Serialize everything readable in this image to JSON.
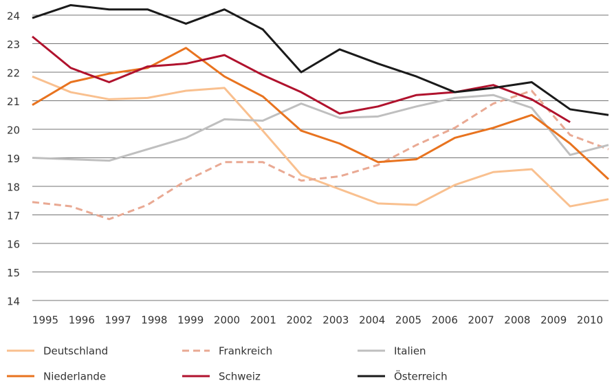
{
  "chart_data": {
    "type": "line",
    "categories": [
      "1995",
      "1996",
      "1997",
      "1998",
      "1999",
      "2000",
      "2001",
      "2002",
      "2003",
      "2004",
      "2005",
      "2006",
      "2007",
      "2008",
      "2009",
      "2010"
    ],
    "ylim": [
      14,
      24.4
    ],
    "yticks": [
      14,
      15,
      16,
      17,
      18,
      19,
      20,
      21,
      22,
      23,
      24
    ],
    "grid": true,
    "series": [
      {
        "name": "Deutschland",
        "color": "#f9c08f",
        "values": [
          21.85,
          21.3,
          21.05,
          21.1,
          21.35,
          21.45,
          19.95,
          18.4,
          17.9,
          17.4,
          17.35,
          18.05,
          18.5,
          18.6,
          17.3,
          17.55
        ]
      },
      {
        "name": "Frankreich",
        "color": "#e9a993",
        "dashed": true,
        "values": [
          17.45,
          17.3,
          16.85,
          17.35,
          18.2,
          18.85,
          18.85,
          18.2,
          18.35,
          18.75,
          19.45,
          20.05,
          20.9,
          21.35,
          19.8,
          19.3
        ]
      },
      {
        "name": "Italien",
        "color": "#bfbfbf",
        "values": [
          19.0,
          18.95,
          18.9,
          19.3,
          19.7,
          20.35,
          20.3,
          20.9,
          20.4,
          20.45,
          20.8,
          21.1,
          21.2,
          20.75,
          19.1,
          19.45
        ]
      },
      {
        "name": "Niederlande",
        "color": "#e8731f",
        "values": [
          20.85,
          21.65,
          21.95,
          22.15,
          22.85,
          21.85,
          21.15,
          19.95,
          19.5,
          18.85,
          18.95,
          19.7,
          20.05,
          20.5,
          19.5,
          18.25
        ]
      },
      {
        "name": "Schweiz",
        "color": "#b0122d",
        "values": [
          23.25,
          22.15,
          21.65,
          22.2,
          22.3,
          22.6,
          21.9,
          21.3,
          20.55,
          20.8,
          21.2,
          21.3,
          21.55,
          21.05,
          20.25,
          null
        ]
      },
      {
        "name": "Österreich",
        "color": "#1a1a1a",
        "values": [
          23.9,
          24.35,
          24.2,
          24.2,
          23.7,
          24.2,
          23.5,
          22.0,
          22.8,
          22.3,
          21.85,
          21.3,
          21.45,
          21.65,
          20.7,
          20.5
        ]
      }
    ]
  }
}
